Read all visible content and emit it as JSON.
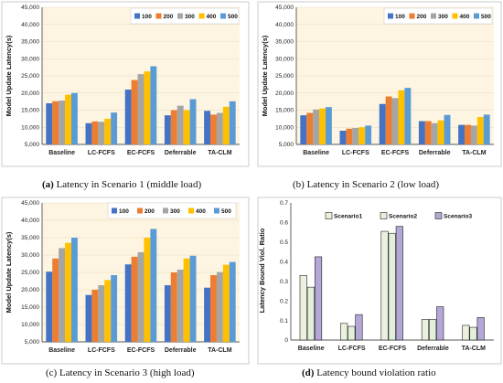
{
  "colors": {
    "s100": "#4472C4",
    "s200": "#ED7D31",
    "s300": "#A5A5A5",
    "s400": "#FFC000",
    "s500": "#5B9BD5",
    "plot_bg": "#FDF5E1",
    "scen1": "#EBF1DE",
    "scen2": "#E2EFD9",
    "scen3": "#B4A7D6",
    "bar_outline": "#222222"
  },
  "chart_data": [
    {
      "type": "bar",
      "caption_label": "(a)",
      "caption_text": " Latency in Scenario 1 (middle load)",
      "ylabel": "Model Update Latency(s)",
      "ylim": [
        5000,
        45000
      ],
      "ytick_step": 5000,
      "yticks": [
        "5,000",
        "10,000",
        "15,000",
        "20,000",
        "25,000",
        "30,000",
        "35,000",
        "40,000",
        "45,000"
      ],
      "categories": [
        "Baseline",
        "LC-FCFS",
        "EC-FCFS",
        "Deferrable",
        "TA-CLM"
      ],
      "legend_position": "top-right",
      "series": [
        {
          "name": "100",
          "color_key": "s100",
          "values": [
            17000,
            11200,
            21000,
            13500,
            14800
          ]
        },
        {
          "name": "200",
          "color_key": "s200",
          "values": [
            17600,
            11700,
            23800,
            15000,
            13700
          ]
        },
        {
          "name": "300",
          "color_key": "s300",
          "values": [
            17800,
            11600,
            25500,
            16300,
            14200
          ]
        },
        {
          "name": "400",
          "color_key": "s400",
          "values": [
            19500,
            12500,
            26300,
            15000,
            16000
          ]
        },
        {
          "name": "500",
          "color_key": "s500",
          "values": [
            20000,
            14300,
            27800,
            18200,
            17600
          ]
        }
      ]
    },
    {
      "type": "bar",
      "caption_label": "",
      "caption_text": "(b) Latency in Scenario 2 (low load)",
      "ylabel": "Model Update Latency(s)",
      "ylim": [
        5000,
        45000
      ],
      "ytick_step": 5000,
      "yticks": [
        "5,000",
        "10,000",
        "15,000",
        "20,000",
        "25,000",
        "30,000",
        "35,000",
        "40,000",
        "45,000"
      ],
      "categories": [
        "Baseline",
        "LC-FCFS",
        "EC-FCFS",
        "Deferrable",
        "TA-CLM"
      ],
      "legend_position": "top-right",
      "series": [
        {
          "name": "100",
          "color_key": "s100",
          "values": [
            13500,
            9000,
            16800,
            11800,
            10700
          ]
        },
        {
          "name": "200",
          "color_key": "s200",
          "values": [
            14200,
            9600,
            19000,
            11800,
            10700
          ]
        },
        {
          "name": "300",
          "color_key": "s300",
          "values": [
            15200,
            9800,
            18500,
            11200,
            10500
          ]
        },
        {
          "name": "400",
          "color_key": "s400",
          "values": [
            15500,
            10000,
            20800,
            12000,
            13000
          ]
        },
        {
          "name": "500",
          "color_key": "s500",
          "values": [
            15900,
            10500,
            21500,
            13600,
            13700
          ]
        }
      ]
    },
    {
      "type": "bar",
      "caption_label": "",
      "caption_text": "(c) Latency in Scenario 3 (high load)",
      "ylabel": "Model Update Latency(s)",
      "ylim": [
        5000,
        45000
      ],
      "ytick_step": 5000,
      "yticks": [
        "5,000",
        "10,000",
        "15,000",
        "20,000",
        "25,000",
        "30,000",
        "35,000",
        "40,000",
        "45,000"
      ],
      "categories": [
        "Baseline",
        "LC-FCFS",
        "EC-FCFS",
        "Deferrable",
        "TA-CLM"
      ],
      "legend_position": "top-right",
      "series": [
        {
          "name": "100",
          "color_key": "s100",
          "values": [
            25200,
            18500,
            27300,
            21300,
            20600
          ]
        },
        {
          "name": "200",
          "color_key": "s200",
          "values": [
            29000,
            20000,
            29500,
            25000,
            24200
          ]
        },
        {
          "name": "300",
          "color_key": "s300",
          "values": [
            32000,
            21300,
            30800,
            25800,
            25100
          ]
        },
        {
          "name": "400",
          "color_key": "s400",
          "values": [
            33500,
            22800,
            35000,
            29000,
            27200
          ]
        },
        {
          "name": "500",
          "color_key": "s500",
          "values": [
            35000,
            24200,
            37500,
            29800,
            28000
          ]
        }
      ]
    },
    {
      "type": "bar",
      "caption_label": "(d)",
      "caption_text": " Latency bound violation ratio",
      "ylabel": "Latency Bound Viol. Ratio",
      "ylim": [
        0,
        0.7
      ],
      "ytick_step": 0.1,
      "yticks": [
        "0",
        "0.1",
        "0.2",
        "0.3",
        "0.4",
        "0.5",
        "0.6",
        "0.7"
      ],
      "categories": [
        "Baseline",
        "LC-FCFS",
        "EC-FCFS",
        "Deferrable",
        "TA-CLM"
      ],
      "legend_position": "top",
      "series": [
        {
          "name": "Scenario1",
          "color_key": "scen1",
          "values": [
            0.33,
            0.085,
            0.555,
            0.105,
            0.075
          ]
        },
        {
          "name": "Scenario2",
          "color_key": "scen2",
          "values": [
            0.27,
            0.07,
            0.545,
            0.105,
            0.065
          ]
        },
        {
          "name": "Scenario3",
          "color_key": "scen3",
          "values": [
            0.425,
            0.13,
            0.58,
            0.17,
            0.115
          ]
        }
      ]
    }
  ]
}
